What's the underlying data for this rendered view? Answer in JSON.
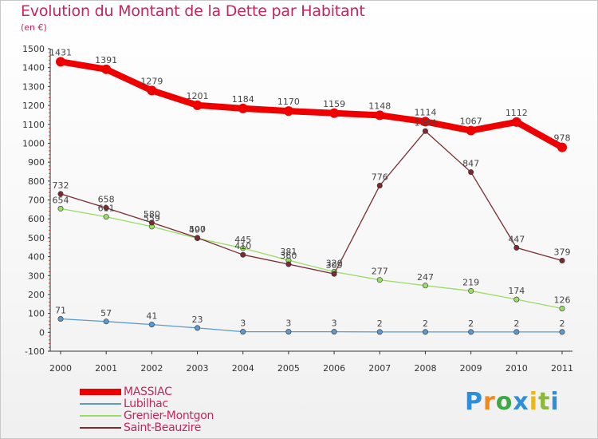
{
  "chart_data": {
    "type": "line",
    "title": "Evolution du Montant de la Dette par Habitant",
    "subtitle": "(en €)",
    "x": [
      "2000",
      "2001",
      "2002",
      "2003",
      "2004",
      "2005",
      "2006",
      "2007",
      "2008",
      "2009",
      "2010",
      "2011"
    ],
    "ylim": [
      -100,
      1500
    ],
    "yticks": [
      -100,
      0,
      100,
      200,
      300,
      400,
      500,
      600,
      700,
      800,
      900,
      1000,
      1100,
      1200,
      1300,
      1400,
      1500
    ],
    "grid": false,
    "legend_position": "bottom-left",
    "series": [
      {
        "name": "MASSIAC",
        "color": "#ee0000",
        "values": [
          1431,
          1391,
          1279,
          1201,
          1184,
          1170,
          1159,
          1148,
          1114,
          1067,
          1112,
          978
        ]
      },
      {
        "name": "Lubilhac",
        "color": "#5a9ad0",
        "values": [
          71,
          57,
          41,
          23,
          3,
          3,
          3,
          2,
          2,
          2,
          2,
          2
        ]
      },
      {
        "name": "Grenier-Montgon",
        "color": "#99dd66",
        "values": [
          654,
          611,
          559,
          497,
          445,
          381,
          320,
          277,
          247,
          219,
          174,
          126
        ]
      },
      {
        "name": "Saint-Beauzire",
        "color": "#7a2b32",
        "values": [
          732,
          658,
          580,
          500,
          410,
          360,
          309,
          776,
          1064,
          847,
          447,
          379
        ]
      }
    ]
  },
  "logo": {
    "letters": [
      "P",
      "r",
      "o",
      "x",
      "i",
      "t",
      "i"
    ]
  }
}
